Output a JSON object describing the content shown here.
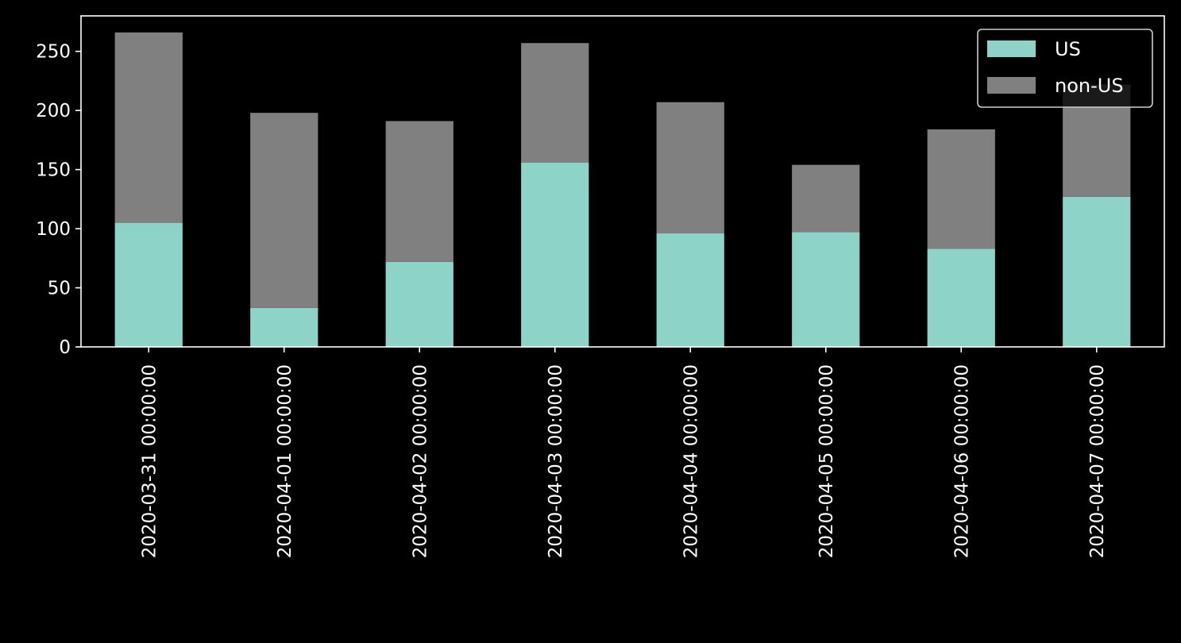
{
  "chart_data": {
    "type": "bar",
    "stacked": true,
    "title": "",
    "xlabel": "",
    "ylabel": "",
    "categories": [
      "2020-03-31 00:00:00",
      "2020-04-01 00:00:00",
      "2020-04-02 00:00:00",
      "2020-04-03 00:00:00",
      "2020-04-04 00:00:00",
      "2020-04-05 00:00:00",
      "2020-04-06 00:00:00",
      "2020-04-07 00:00:00"
    ],
    "series": [
      {
        "name": "US",
        "color": "#8dd3c7",
        "values": [
          105,
          33,
          72,
          156,
          96,
          97,
          83,
          127
        ]
      },
      {
        "name": "non-US",
        "color": "#808080",
        "values": [
          161,
          165,
          119,
          101,
          111,
          57,
          101,
          95
        ]
      }
    ],
    "ylim": [
      0,
      280
    ],
    "yticks": [
      "0",
      "50",
      "100",
      "150",
      "200",
      "250"
    ],
    "grid": false,
    "legend_position": "top-right",
    "background": "#000000",
    "foreground": "#ffffff"
  }
}
